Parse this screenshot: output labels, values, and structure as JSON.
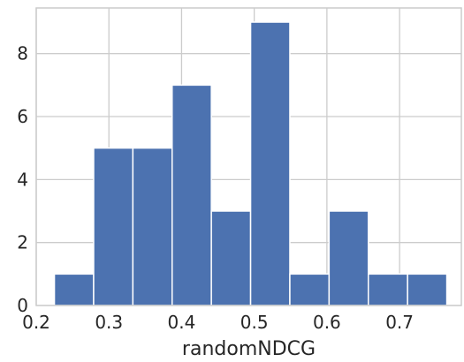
{
  "chart_data": {
    "type": "bar",
    "subtype": "histogram",
    "xlabel": "randomNDCG",
    "ylabel": "",
    "bin_edges": [
      0.225,
      0.279,
      0.333,
      0.387,
      0.441,
      0.495,
      0.549,
      0.603,
      0.657,
      0.711,
      0.765
    ],
    "values": [
      1,
      5,
      5,
      7,
      3,
      9,
      1,
      3,
      1,
      1
    ],
    "xlim": [
      0.2,
      0.785
    ],
    "ylim": [
      0,
      9.45
    ],
    "x_ticks": [
      0.2,
      0.3,
      0.4,
      0.5,
      0.6,
      0.7
    ],
    "x_tick_labels": [
      "0.2",
      "0.3",
      "0.4",
      "0.5",
      "0.6",
      "0.7"
    ],
    "y_ticks": [
      0,
      2,
      4,
      6,
      8
    ],
    "y_tick_labels": [
      "0",
      "2",
      "4",
      "6",
      "8"
    ],
    "grid": true,
    "bar_color": "#4c72b0",
    "background": "#ffffff",
    "grid_color": "#cccccc"
  }
}
